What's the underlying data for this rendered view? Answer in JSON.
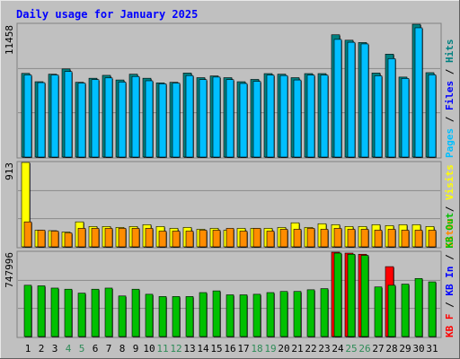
{
  "chart_data": [
    {
      "type": "bar",
      "title": "Daily usage for January 2025",
      "categories": [
        "1",
        "2",
        "3",
        "4",
        "5",
        "6",
        "7",
        "8",
        "9",
        "10",
        "11",
        "12",
        "13",
        "14",
        "15",
        "16",
        "17",
        "18",
        "19",
        "20",
        "21",
        "22",
        "23",
        "24",
        "25",
        "26",
        "27",
        "28",
        "29",
        "30",
        "31"
      ],
      "weekend_day_color": "#2e8b57",
      "weekend_days": [
        "4",
        "5",
        "11",
        "12",
        "18",
        "19",
        "25",
        "26"
      ],
      "ymax_label": "11458",
      "ylim": [
        0,
        11458
      ],
      "legend": [
        "Pages",
        "Files",
        "Hits"
      ],
      "series": [
        {
          "name": "Hits",
          "color": "#008080",
          "values": [
            7220,
            6500,
            7150,
            7600,
            6450,
            6800,
            7050,
            6650,
            7150,
            6800,
            6400,
            6450,
            7250,
            6850,
            7000,
            6850,
            6500,
            6700,
            7200,
            7150,
            6850,
            7200,
            7200,
            10550,
            10080,
            9880,
            7250,
            8880,
            6900,
            11458,
            7280
          ]
        },
        {
          "name": "Files",
          "color": "#00bfff",
          "values": [
            7080,
            6420,
            7080,
            7380,
            6380,
            6680,
            6830,
            6470,
            6950,
            6580,
            6320,
            6380,
            7030,
            6680,
            6900,
            6680,
            6350,
            6530,
            7070,
            7030,
            6650,
            7070,
            7070,
            10150,
            9900,
            9760,
            7010,
            8490,
            6780,
            11150,
            7100
          ]
        }
      ]
    },
    {
      "type": "bar",
      "ymax_label": "913",
      "ylim": [
        0,
        913
      ],
      "legend": [
        "Visits",
        "Sites"
      ],
      "series": [
        {
          "name": "Visits",
          "color": "#ffff00",
          "values": [
            913,
            180,
            175,
            160,
            270,
            220,
            220,
            210,
            220,
            240,
            220,
            200,
            210,
            190,
            200,
            180,
            200,
            200,
            200,
            210,
            260,
            210,
            250,
            240,
            220,
            220,
            240,
            230,
            240,
            240,
            220
          ]
        },
        {
          "name": "Sites",
          "color": "#ff8c00",
          "values": [
            270,
            180,
            170,
            150,
            200,
            200,
            200,
            200,
            200,
            200,
            170,
            170,
            170,
            180,
            180,
            200,
            170,
            200,
            170,
            190,
            190,
            200,
            190,
            200,
            190,
            190,
            180,
            190,
            180,
            180,
            180
          ]
        }
      ]
    },
    {
      "type": "bar",
      "ymax_label": "747996",
      "ylim": [
        0,
        747996
      ],
      "legend": [
        "KB In",
        "KB Out",
        "KB F"
      ],
      "series": [
        {
          "name": "KB F",
          "color": "#ff0000",
          "values": [
            0,
            0,
            0,
            0,
            0,
            0,
            0,
            0,
            0,
            0,
            0,
            0,
            0,
            0,
            0,
            0,
            0,
            0,
            0,
            0,
            0,
            0,
            0,
            747996,
            740000,
            730000,
            0,
            620000,
            0,
            0,
            0
          ]
        },
        {
          "name": "KB Out",
          "color": "#00c000",
          "values": [
            455000,
            450000,
            430000,
            420000,
            385000,
            420000,
            430000,
            360000,
            420000,
            375000,
            355000,
            355000,
            355000,
            390000,
            405000,
            370000,
            370000,
            375000,
            390000,
            400000,
            400000,
            415000,
            425000,
            740000,
            730000,
            720000,
            440000,
            455000,
            465000,
            515000,
            485000
          ]
        }
      ]
    }
  ]
}
